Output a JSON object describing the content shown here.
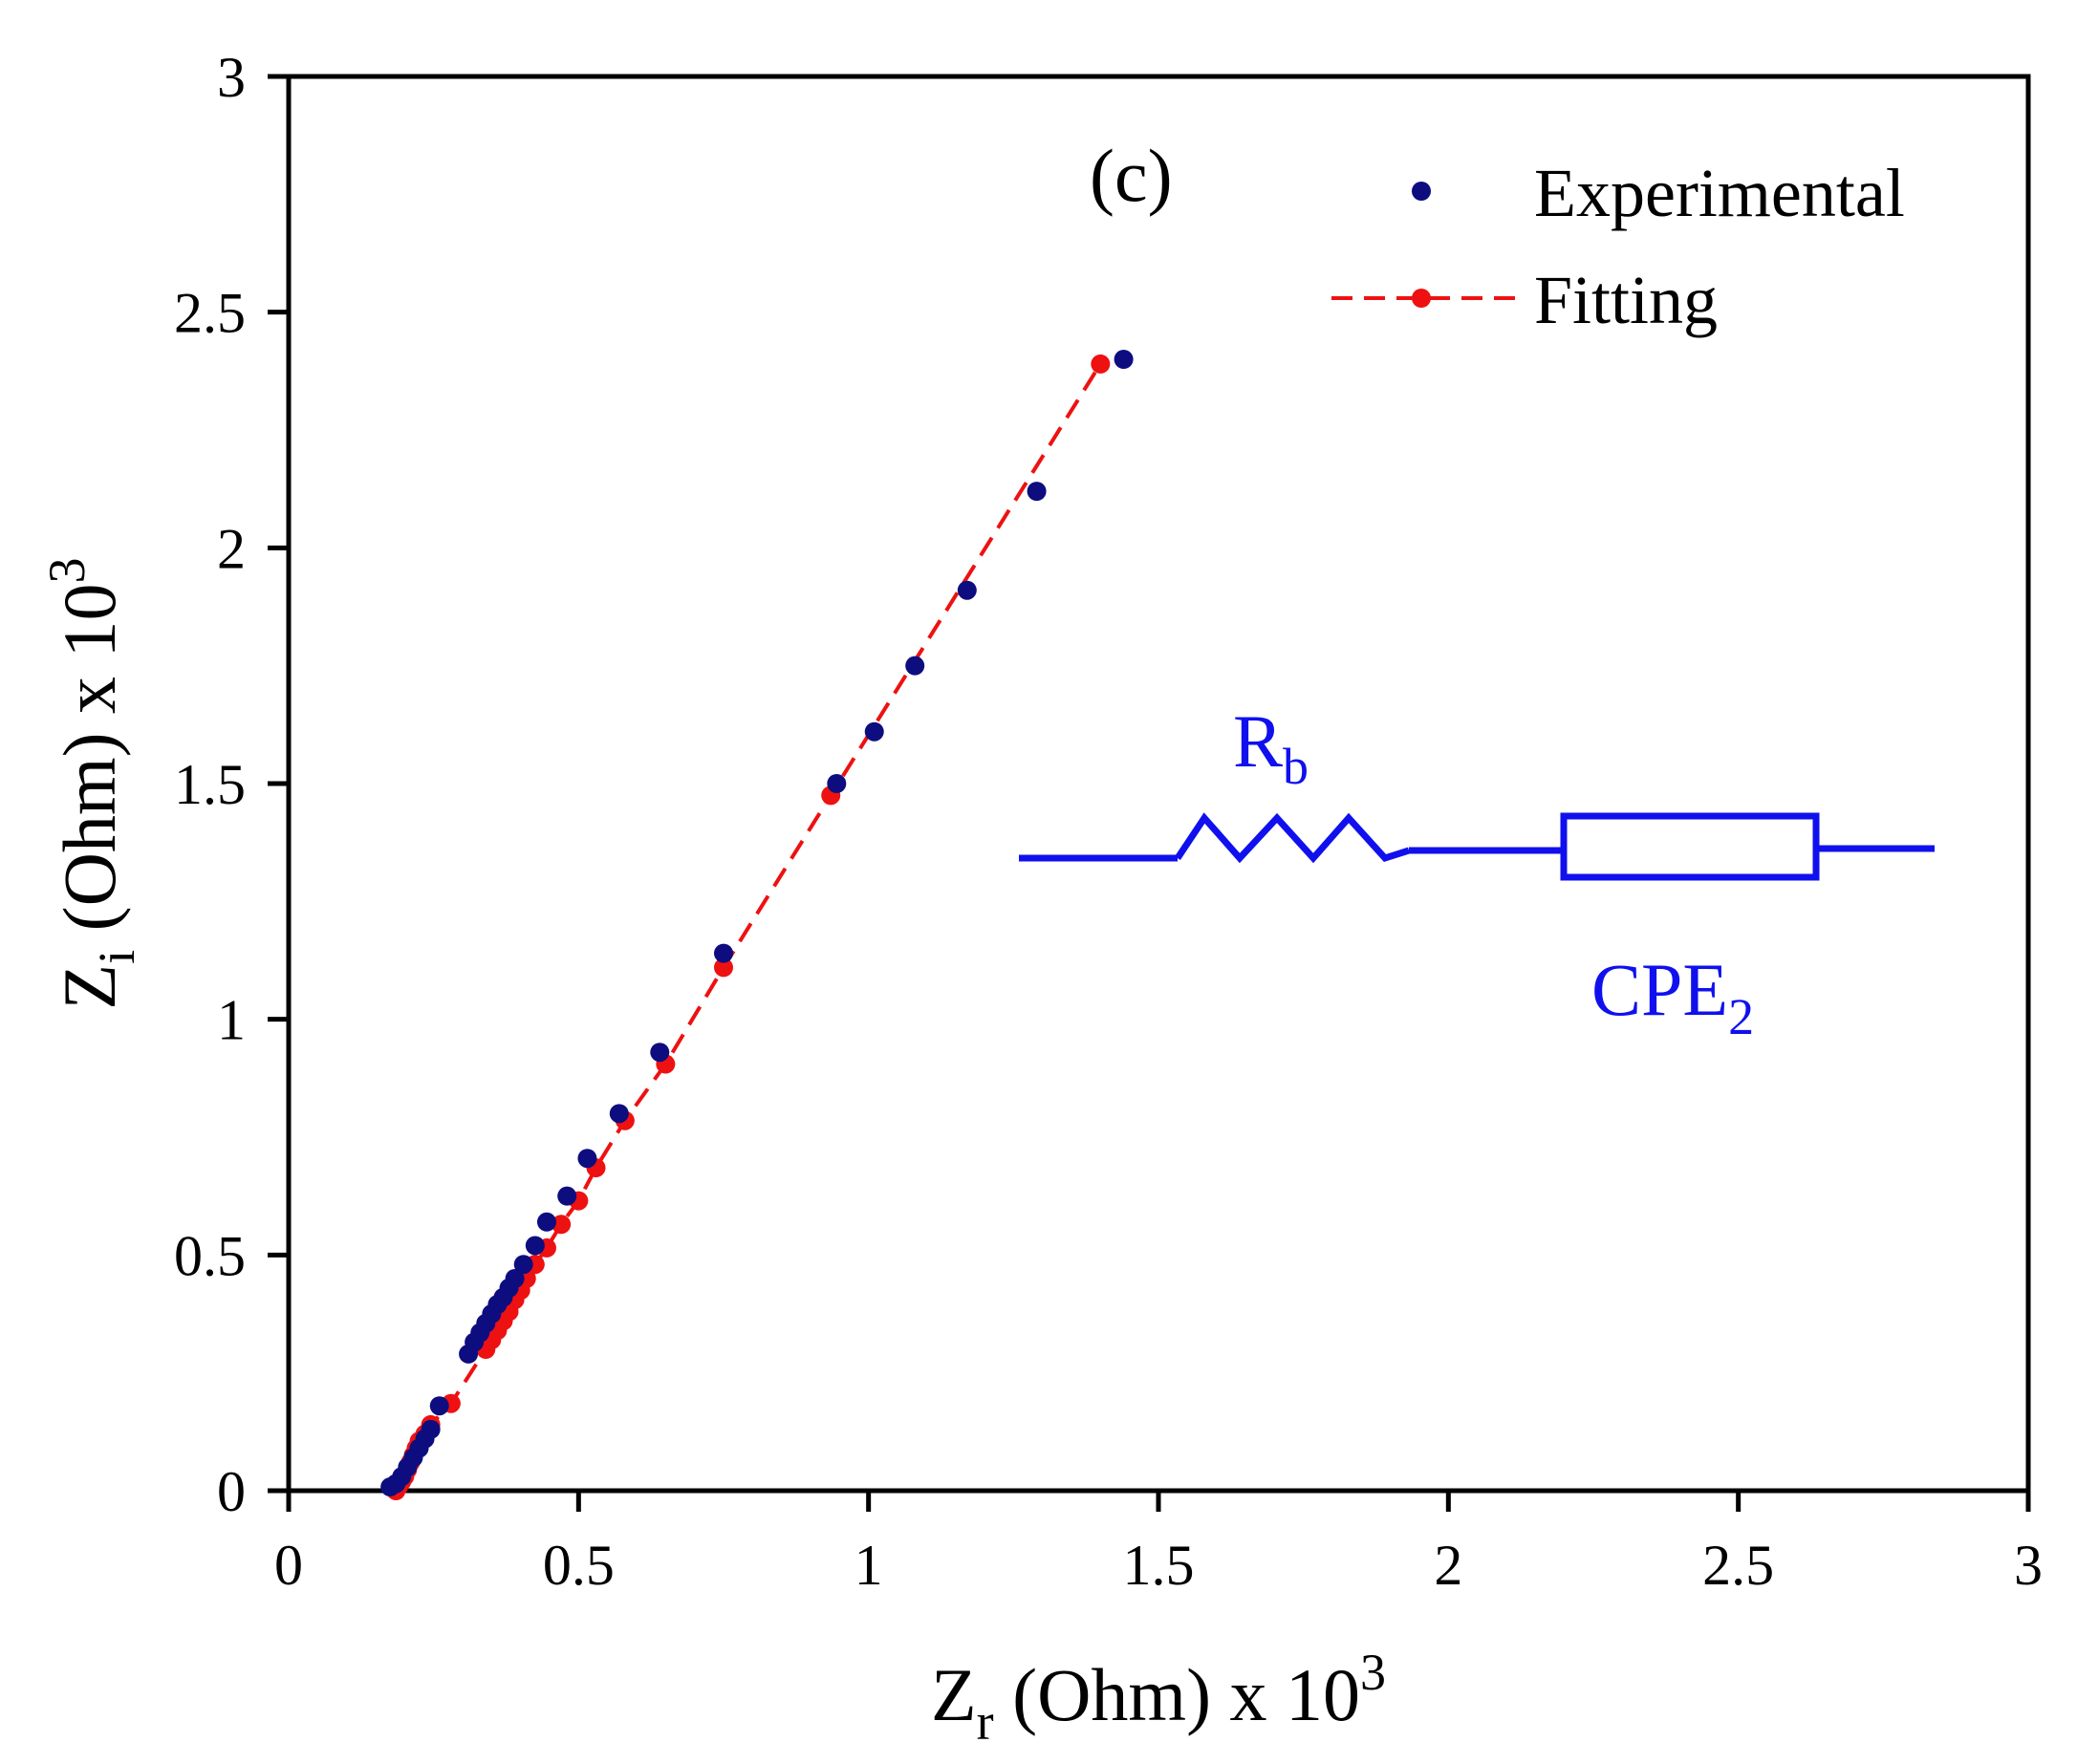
{
  "chart_data": {
    "type": "scatter",
    "panel_label": "(c)",
    "x_axis": {
      "label_main": "Z",
      "label_sub": "r",
      "label_rest": " (Ohm) x 10",
      "label_sup": "3",
      "range": [
        0,
        3
      ],
      "ticks": [
        0,
        0.5,
        1,
        1.5,
        2,
        2.5,
        3
      ],
      "tick_labels": [
        "0",
        "0.5",
        "1",
        "1.5",
        "2",
        "2.5",
        "3"
      ]
    },
    "y_axis": {
      "label_main": "Z",
      "label_sub": "i",
      "label_rest": " (Ohm) x 10",
      "label_sup": "3",
      "range": [
        0,
        3
      ],
      "ticks": [
        0,
        0.5,
        1,
        1.5,
        2,
        2.5,
        3
      ],
      "tick_labels": [
        "0",
        "0.5",
        "1",
        "1.5",
        "2",
        "2.5",
        "3"
      ]
    },
    "grid": false,
    "legend_position": "top-right",
    "series": [
      {
        "name": "Experimental",
        "style": "markers",
        "color": "#0d0d80",
        "points": [
          [
            1.44,
            2.4
          ],
          [
            1.29,
            2.12
          ],
          [
            1.17,
            1.91
          ],
          [
            1.08,
            1.75
          ],
          [
            1.01,
            1.61
          ],
          [
            0.945,
            1.5
          ],
          [
            0.75,
            1.14
          ],
          [
            0.64,
            0.93
          ],
          [
            0.57,
            0.8
          ],
          [
            0.515,
            0.705
          ],
          [
            0.48,
            0.625
          ],
          [
            0.445,
            0.57
          ],
          [
            0.425,
            0.52
          ],
          [
            0.405,
            0.48
          ],
          [
            0.39,
            0.45
          ],
          [
            0.38,
            0.43
          ],
          [
            0.37,
            0.41
          ],
          [
            0.36,
            0.395
          ],
          [
            0.35,
            0.375
          ],
          [
            0.34,
            0.355
          ],
          [
            0.33,
            0.335
          ],
          [
            0.32,
            0.315
          ],
          [
            0.31,
            0.29
          ],
          [
            0.26,
            0.18
          ],
          [
            0.245,
            0.13
          ],
          [
            0.235,
            0.11
          ],
          [
            0.225,
            0.09
          ],
          [
            0.215,
            0.07
          ],
          [
            0.205,
            0.05
          ],
          [
            0.195,
            0.03
          ],
          [
            0.185,
            0.015
          ],
          [
            0.175,
            0.008
          ]
        ]
      },
      {
        "name": "Fitting",
        "style": "dashed-line-markers",
        "color": "#ee1111",
        "points": [
          [
            0.185,
            0.0
          ],
          [
            0.19,
            0.01
          ],
          [
            0.195,
            0.02
          ],
          [
            0.2,
            0.03
          ],
          [
            0.205,
            0.045
          ],
          [
            0.21,
            0.06
          ],
          [
            0.215,
            0.075
          ],
          [
            0.22,
            0.09
          ],
          [
            0.225,
            0.105
          ],
          [
            0.235,
            0.12
          ],
          [
            0.245,
            0.14
          ],
          [
            0.28,
            0.185
          ],
          [
            0.34,
            0.3
          ],
          [
            0.35,
            0.32
          ],
          [
            0.36,
            0.34
          ],
          [
            0.37,
            0.36
          ],
          [
            0.38,
            0.38
          ],
          [
            0.39,
            0.405
          ],
          [
            0.4,
            0.425
          ],
          [
            0.41,
            0.45
          ],
          [
            0.425,
            0.48
          ],
          [
            0.445,
            0.515
          ],
          [
            0.47,
            0.565
          ],
          [
            0.5,
            0.615
          ],
          [
            0.53,
            0.685
          ],
          [
            0.58,
            0.785
          ],
          [
            0.65,
            0.905
          ],
          [
            0.75,
            1.11
          ],
          [
            0.935,
            1.475
          ],
          [
            1.4,
            2.39
          ]
        ]
      }
    ],
    "inset_circuit": {
      "resistor_label_main": "R",
      "resistor_label_sub": "b",
      "cpe_label_main": "CPE",
      "cpe_label_sub": "2",
      "color": "#1010ee"
    }
  }
}
